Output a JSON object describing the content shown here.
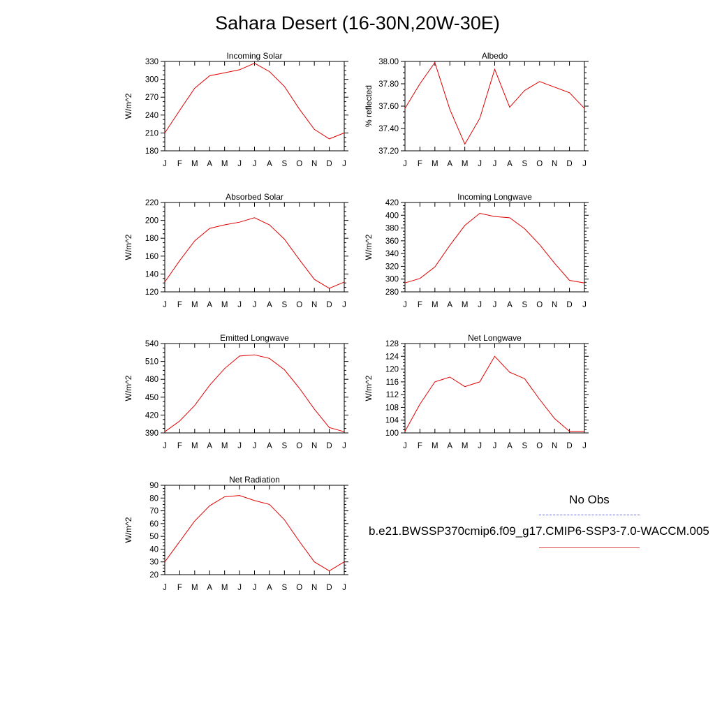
{
  "title": "Sahara Desert (16-30N,20W-30E)",
  "months": [
    "J",
    "F",
    "M",
    "A",
    "M",
    "J",
    "J",
    "A",
    "S",
    "O",
    "N",
    "D",
    "J"
  ],
  "legend": {
    "obs_label": "No Obs",
    "model_label": "b.e21.BWSSP370cmip6.f09_g17.CMIP6-SSP3-7.0-WACCM.005",
    "obs_color": "#6a6ae6",
    "model_color": "#e00000"
  },
  "chart_data": [
    {
      "type": "line",
      "title": "Incoming Solar",
      "ylabel": "W/m^2",
      "ylim": [
        180,
        330
      ],
      "yticks": [
        "180",
        "210",
        "240",
        "270",
        "300",
        "330"
      ],
      "y": [
        210,
        248,
        285,
        306,
        311,
        316,
        327,
        313,
        288,
        250,
        216,
        200,
        210
      ]
    },
    {
      "type": "line",
      "title": "Albedo",
      "ylabel": "% reflected",
      "ylim": [
        37.2,
        38.0
      ],
      "yticks": [
        "37.20",
        "37.40",
        "37.60",
        "37.80",
        "38.00"
      ],
      "y": [
        37.58,
        37.8,
        37.99,
        37.57,
        37.26,
        37.49,
        37.93,
        37.59,
        37.74,
        37.82,
        37.77,
        37.72,
        37.58
      ]
    },
    {
      "type": "line",
      "title": "Absorbed Solar",
      "ylabel": "W/m^2",
      "ylim": [
        120,
        220
      ],
      "yticks": [
        "120",
        "140",
        "160",
        "180",
        "200",
        "220"
      ],
      "y": [
        131,
        155,
        177,
        191,
        195,
        198,
        203,
        195,
        179,
        156,
        134,
        124,
        131
      ]
    },
    {
      "type": "line",
      "title": "Incoming Longwave",
      "ylabel": "W/m^2",
      "ylim": [
        280,
        420
      ],
      "yticks": [
        "280",
        "300",
        "320",
        "340",
        "360",
        "380",
        "400",
        "420"
      ],
      "y": [
        294,
        301,
        319,
        353,
        384,
        403,
        398,
        396,
        379,
        354,
        325,
        298,
        294
      ]
    },
    {
      "type": "line",
      "title": "Emitted Longwave",
      "ylabel": "W/m^2",
      "ylim": [
        390,
        540
      ],
      "yticks": [
        "390",
        "420",
        "450",
        "480",
        "510",
        "540"
      ],
      "y": [
        392,
        410,
        436,
        470,
        498,
        519,
        521,
        515,
        496,
        465,
        430,
        399,
        392
      ]
    },
    {
      "type": "line",
      "title": "Net Longwave",
      "ylabel": "W/m^2",
      "ylim": [
        100,
        128
      ],
      "yticks": [
        "100",
        "104",
        "108",
        "112",
        "116",
        "120",
        "124",
        "128"
      ],
      "y": [
        100.5,
        109,
        116,
        117.5,
        114.5,
        116,
        124,
        119,
        117,
        110.5,
        104.5,
        100.5,
        100.5
      ]
    },
    {
      "type": "line",
      "title": "Net Radiation",
      "ylabel": "W/m^2",
      "ylim": [
        20,
        90
      ],
      "yticks": [
        "20",
        "30",
        "40",
        "50",
        "60",
        "70",
        "80",
        "90"
      ],
      "y": [
        30,
        46,
        62,
        74,
        81,
        82,
        78,
        75,
        63,
        46,
        30,
        23,
        30
      ]
    }
  ]
}
